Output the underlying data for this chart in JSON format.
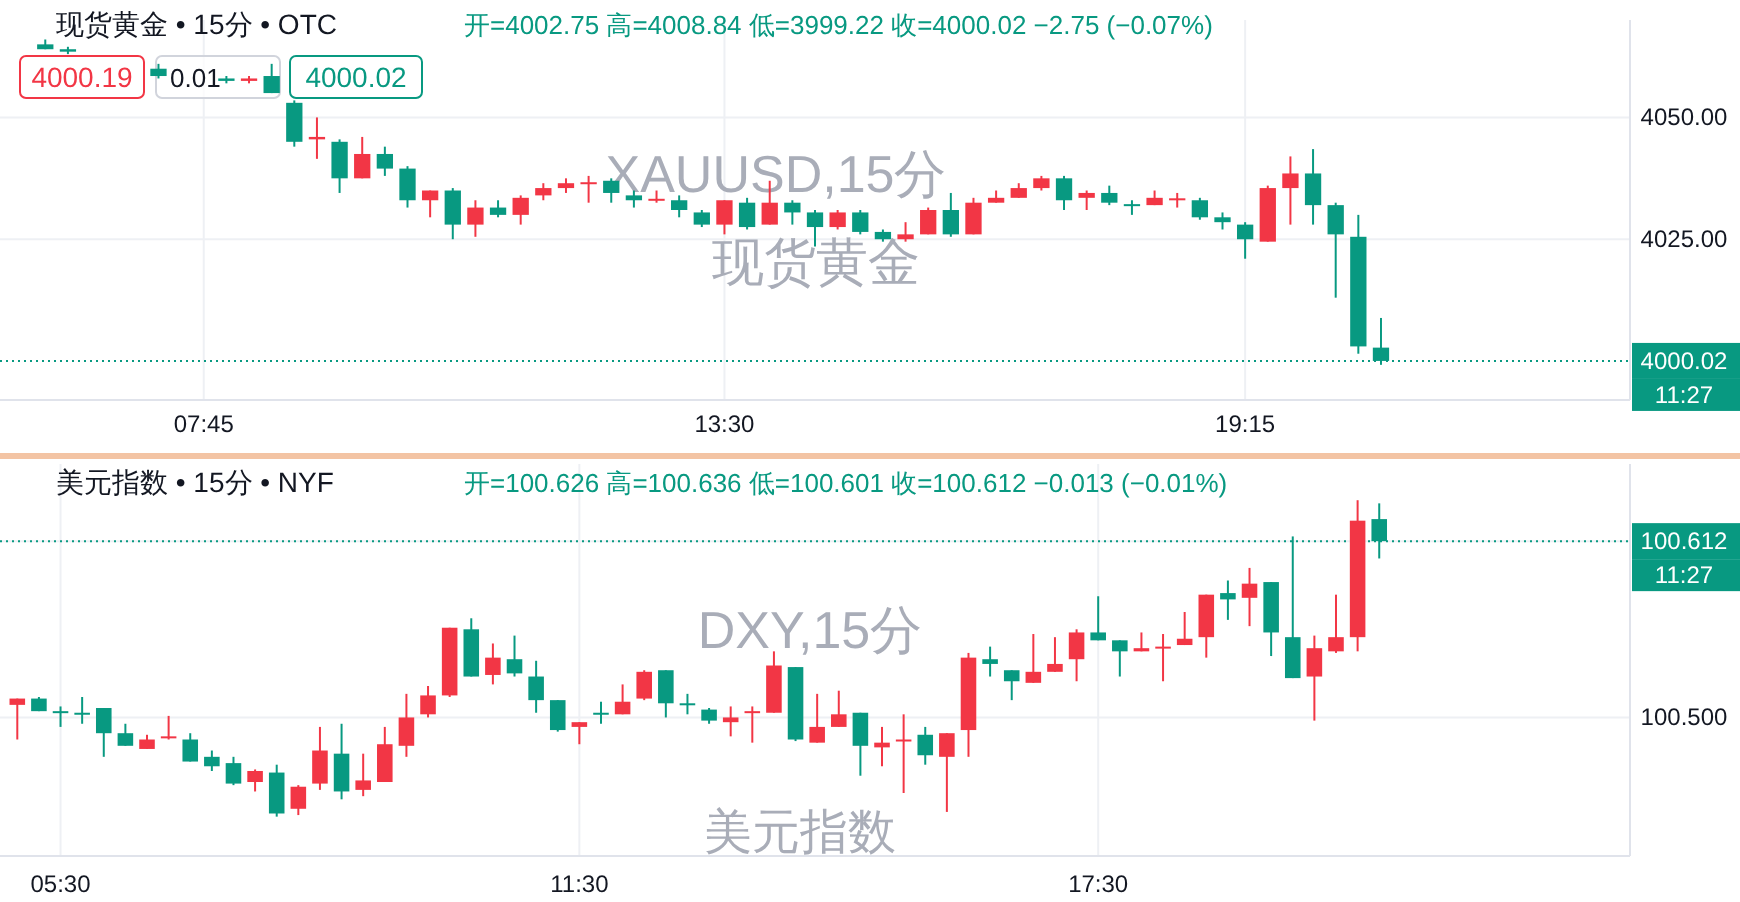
{
  "chart_data": [
    {
      "type": "candlestick",
      "title": "现货黄金 • 15分 • OTC",
      "subtitle": "开=4002.75 高=4008.84 低=3999.22 收=4000.02 −2.75 (−0.07%)",
      "x": [
        6,
        6.25,
        7.25,
        8,
        8.25,
        8.5,
        8.75,
        9,
        9.25,
        9.5,
        9.75,
        10,
        10.25,
        10.5,
        10.75,
        11,
        11.25,
        11.5,
        11.75,
        12,
        12.25,
        12.5,
        12.75,
        13,
        13.25,
        13.5,
        13.75,
        14,
        14.25,
        14.5,
        14.75,
        15,
        15.25,
        15.5,
        15.75,
        16,
        16.25,
        16.5,
        16.75,
        17,
        17.25,
        17.5,
        17.75,
        18,
        18.25,
        18.5,
        18.75,
        19,
        19.25,
        19.5,
        19.75,
        20,
        20.25,
        20.5,
        20.75
      ],
      "ohlc": [
        [
          4065,
          4066,
          4064,
          4064
        ],
        [
          4064,
          4064.5,
          4063,
          4063.5
        ],
        [
          4060,
          4061,
          4058,
          4058.5
        ],
        [
          4058,
          4058.5,
          4057,
          4057.5
        ],
        [
          4057.5,
          4058.5,
          4057,
          4058
        ],
        [
          4058.5,
          4061,
          4055,
          4055
        ],
        [
          4053,
          4053.5,
          4044,
          4045
        ],
        [
          4045.5,
          4050,
          4041.5,
          4046
        ],
        [
          4045,
          4045.5,
          4034.5,
          4037.5
        ],
        [
          4037.5,
          4046,
          4037.5,
          4042.5
        ],
        [
          4042.5,
          4044,
          4038,
          4039.5
        ],
        [
          4039.5,
          4040,
          4031.5,
          4033
        ],
        [
          4033,
          4035,
          4029.5,
          4035
        ],
        [
          4035,
          4035.5,
          4025,
          4028
        ],
        [
          4028,
          4033,
          4025.5,
          4031.5
        ],
        [
          4031.5,
          4033,
          4029.5,
          4030
        ],
        [
          4030,
          4034,
          4028,
          4033.5
        ],
        [
          4034,
          4036.5,
          4033,
          4035.5
        ],
        [
          4035.5,
          4037.5,
          4034.5,
          4036.5
        ],
        [
          4036.5,
          4038,
          4032.5,
          4036.7
        ],
        [
          4037,
          4037.5,
          4032.5,
          4034.5
        ],
        [
          4034,
          4035,
          4031.5,
          4033
        ],
        [
          4033,
          4035,
          4032.5,
          4033.3
        ],
        [
          4033,
          4034,
          4029.5,
          4031
        ],
        [
          4030.5,
          4031,
          4027.5,
          4028
        ],
        [
          4028,
          4033,
          4026,
          4033
        ],
        [
          4032.5,
          4033.5,
          4027,
          4027.5
        ],
        [
          4028,
          4037,
          4028,
          4032.5
        ],
        [
          4032.5,
          4033,
          4028,
          4030.5
        ],
        [
          4030.5,
          4031,
          4023.5,
          4027.5
        ],
        [
          4027.5,
          4031,
          4027,
          4030.5
        ],
        [
          4030.5,
          4031,
          4026,
          4026.5
        ],
        [
          4026.5,
          4027,
          4024.5,
          4025
        ],
        [
          4025,
          4028.5,
          4024.5,
          4026
        ],
        [
          4026,
          4031.5,
          4026,
          4031
        ],
        [
          4031,
          4034.5,
          4025.5,
          4026
        ],
        [
          4026,
          4033.5,
          4026,
          4032.5
        ],
        [
          4032.5,
          4035,
          4032.5,
          4033.5
        ],
        [
          4033.5,
          4036.5,
          4033.5,
          4035.5
        ],
        [
          4035.5,
          4038,
          4035,
          4037.5
        ],
        [
          4037.5,
          4038,
          4031,
          4033
        ],
        [
          4033.5,
          4035,
          4031,
          4034.5
        ],
        [
          4034.5,
          4036,
          4032,
          4032.5
        ],
        [
          4032.2,
          4033,
          4030,
          4032
        ],
        [
          4032,
          4035,
          4032,
          4033.5
        ],
        [
          4033.2,
          4034.5,
          4031.5,
          4033.4
        ],
        [
          4033,
          4033.5,
          4029,
          4029.5
        ],
        [
          4029.5,
          4030.5,
          4027,
          4028.5
        ],
        [
          4028,
          4028.5,
          4021,
          4025
        ],
        [
          4024.5,
          4036,
          4024.5,
          4035.5
        ],
        [
          4035.5,
          4042,
          4028,
          4038.5
        ],
        [
          4038.5,
          4043.5,
          4028,
          4032
        ],
        [
          4032,
          4032.5,
          4013,
          4026
        ],
        [
          4025.5,
          4030,
          4001.5,
          4003
        ],
        [
          4002.75,
          4008.84,
          3999.22,
          4000.02
        ]
      ],
      "colors": [
        "#089981",
        "#089981",
        "#089981",
        "#089981",
        "#f23645",
        "#089981",
        "#089981",
        "#f23645",
        "#089981",
        "#f23645",
        "#089981",
        "#089981",
        "#f23645",
        "#089981",
        "#f23645",
        "#089981",
        "#f23645",
        "#f23645",
        "#f23645",
        "#f23645",
        "#089981",
        "#089981",
        "#f23645",
        "#089981",
        "#089981",
        "#f23645",
        "#089981",
        "#f23645",
        "#089981",
        "#089981",
        "#f23645",
        "#089981",
        "#089981",
        "#f23645",
        "#f23645",
        "#089981",
        "#f23645",
        "#f23645",
        "#f23645",
        "#f23645",
        "#089981",
        "#f23645",
        "#089981",
        "#089981",
        "#f23645",
        "#f23645",
        "#089981",
        "#089981",
        "#089981",
        "#f23645",
        "#f23645",
        "#089981",
        "#089981",
        "#089981",
        "#089981"
      ],
      "xlim": [
        5.5,
        23.5
      ],
      "xticks": [
        {
          "value": 7.75,
          "label": "07:45"
        },
        {
          "value": 13.5,
          "label": "13:30"
        },
        {
          "value": 19.25,
          "label": "19:15"
        }
      ],
      "ylim": [
        3992,
        4070
      ],
      "yticks": [
        {
          "value": 4025,
          "label": "4025.00"
        },
        {
          "value": 4050,
          "label": "4050.00"
        }
      ],
      "grid": true,
      "ref_lines": [
        {
          "axis": "y",
          "value": 4000.02,
          "label": "4000.02",
          "color": "#089981",
          "line_style": "dotted"
        }
      ],
      "annotations": [
        "4000.19",
        "0.01",
        "4000.02",
        "11:27",
        "XAUUSD,15分",
        "现货黄金"
      ]
    },
    {
      "type": "candlestick",
      "title": "美元指数 • 15分 • NYF",
      "subtitle": "开=100.626 高=100.636 低=100.601 收=100.612 −0.013 (−0.01%)",
      "x": [
        5,
        5.25,
        5.5,
        5.75,
        6,
        6.25,
        6.5,
        6.75,
        7,
        7.25,
        7.5,
        7.75,
        8,
        8.25,
        8.5,
        8.75,
        9,
        9.25,
        9.5,
        9.75,
        10,
        10.25,
        10.5,
        10.75,
        11,
        11.25,
        11.5,
        11.75,
        12,
        12.25,
        12.5,
        12.75,
        13,
        13.25,
        13.5,
        13.75,
        14,
        14.25,
        14.5,
        14.75,
        15,
        15.25,
        15.5,
        15.75,
        16,
        16.25,
        16.5,
        16.75,
        17,
        17.25,
        17.5,
        17.75,
        18,
        18.25,
        18.5,
        18.75,
        19,
        19.25,
        19.5,
        19.75,
        20,
        20.25,
        20.5,
        20.75
      ],
      "ohlc": [
        [
          100.508,
          100.512,
          100.486,
          100.512
        ],
        [
          100.512,
          100.513,
          100.504,
          100.504
        ],
        [
          100.504,
          100.507,
          100.494,
          100.503
        ],
        [
          100.503,
          100.513,
          100.496,
          100.502
        ],
        [
          100.506,
          100.506,
          100.475,
          100.49
        ],
        [
          100.49,
          100.496,
          100.482,
          100.482
        ],
        [
          100.48,
          100.489,
          100.48,
          100.486
        ],
        [
          100.487,
          100.501,
          100.486,
          100.488
        ],
        [
          100.486,
          100.49,
          100.472,
          100.472
        ],
        [
          100.475,
          100.479,
          100.466,
          100.469
        ],
        [
          100.471,
          100.475,
          100.457,
          100.458
        ],
        [
          100.459,
          100.467,
          100.453,
          100.466
        ],
        [
          100.465,
          100.47,
          100.437,
          100.439
        ],
        [
          100.442,
          100.457,
          100.438,
          100.456
        ],
        [
          100.458,
          100.494,
          100.454,
          100.479
        ],
        [
          100.477,
          100.496,
          100.448,
          100.453
        ],
        [
          100.454,
          100.477,
          100.45,
          100.46
        ],
        [
          100.459,
          100.494,
          100.459,
          100.483
        ],
        [
          100.482,
          100.515,
          100.475,
          100.5
        ],
        [
          100.502,
          100.52,
          100.5,
          100.514
        ],
        [
          100.514,
          100.557,
          100.513,
          100.557
        ],
        [
          100.556,
          100.563,
          100.526,
          100.526
        ],
        [
          100.527,
          100.547,
          100.521,
          100.538
        ],
        [
          100.537,
          100.552,
          100.526,
          100.528
        ],
        [
          100.526,
          100.536,
          100.503,
          100.511
        ],
        [
          100.511,
          100.511,
          100.491,
          100.492
        ],
        [
          100.494,
          100.497,
          100.483,
          100.497
        ],
        [
          100.503,
          100.51,
          100.496,
          100.502
        ],
        [
          100.502,
          100.521,
          100.502,
          100.51
        ],
        [
          100.512,
          100.53,
          100.511,
          100.529
        ],
        [
          100.53,
          100.53,
          100.5,
          100.509
        ],
        [
          100.509,
          100.515,
          100.502,
          100.508
        ],
        [
          100.505,
          100.506,
          100.496,
          100.498
        ],
        [
          100.497,
          100.507,
          100.488,
          100.5
        ],
        [
          100.503,
          100.507,
          100.484,
          100.504
        ],
        [
          100.503,
          100.542,
          100.503,
          100.533
        ],
        [
          100.532,
          100.532,
          100.485,
          100.486
        ],
        [
          100.484,
          100.515,
          100.484,
          100.494
        ],
        [
          100.494,
          100.517,
          100.494,
          100.502
        ],
        [
          100.503,
          100.503,
          100.463,
          100.482
        ],
        [
          100.481,
          100.494,
          100.469,
          100.484
        ],
        [
          100.485,
          100.502,
          100.452,
          100.486
        ],
        [
          100.489,
          100.494,
          100.47,
          100.476
        ],
        [
          100.475,
          100.49,
          100.44,
          100.49
        ],
        [
          100.492,
          100.541,
          100.475,
          100.538
        ],
        [
          100.537,
          100.545,
          100.526,
          100.534
        ],
        [
          100.53,
          100.53,
          100.511,
          100.523
        ],
        [
          100.522,
          100.553,
          100.522,
          100.529
        ],
        [
          100.529,
          100.551,
          100.529,
          100.534
        ],
        [
          100.537,
          100.556,
          100.523,
          100.554
        ],
        [
          100.554,
          100.577,
          100.549,
          100.549
        ],
        [
          100.549,
          100.549,
          100.526,
          100.542
        ],
        [
          100.542,
          100.554,
          100.542,
          100.544
        ],
        [
          100.544,
          100.553,
          100.523,
          100.545
        ],
        [
          100.546,
          100.567,
          100.546,
          100.55
        ],
        [
          100.551,
          100.578,
          100.538,
          100.578
        ],
        [
          100.579,
          100.587,
          100.562,
          100.575
        ],
        [
          100.576,
          100.595,
          100.558,
          100.585
        ],
        [
          100.586,
          100.586,
          100.539,
          100.554
        ],
        [
          100.551,
          100.615,
          100.525,
          100.525
        ],
        [
          100.526,
          100.552,
          100.498,
          100.544
        ],
        [
          100.542,
          100.578,
          100.541,
          100.551
        ],
        [
          100.551,
          100.638,
          100.542,
          100.625
        ],
        [
          100.626,
          100.636,
          100.601,
          100.612
        ]
      ],
      "colors": [
        "#f23645",
        "#089981",
        "#089981",
        "#089981",
        "#089981",
        "#089981",
        "#f23645",
        "#f23645",
        "#089981",
        "#089981",
        "#089981",
        "#f23645",
        "#089981",
        "#f23645",
        "#f23645",
        "#089981",
        "#f23645",
        "#f23645",
        "#f23645",
        "#f23645",
        "#f23645",
        "#089981",
        "#f23645",
        "#089981",
        "#089981",
        "#089981",
        "#f23645",
        "#089981",
        "#f23645",
        "#f23645",
        "#089981",
        "#089981",
        "#089981",
        "#f23645",
        "#f23645",
        "#f23645",
        "#089981",
        "#f23645",
        "#f23645",
        "#089981",
        "#f23645",
        "#f23645",
        "#089981",
        "#f23645",
        "#f23645",
        "#089981",
        "#089981",
        "#f23645",
        "#f23645",
        "#f23645",
        "#089981",
        "#089981",
        "#f23645",
        "#f23645",
        "#f23645",
        "#f23645",
        "#089981",
        "#f23645",
        "#089981",
        "#089981",
        "#f23645",
        "#f23645",
        "#f23645",
        "#089981"
      ],
      "xlim": [
        4.8,
        23.65
      ],
      "xticks": [
        {
          "value": 5.5,
          "label": "05:30"
        },
        {
          "value": 11.5,
          "label": "11:30"
        },
        {
          "value": 17.5,
          "label": "17:30"
        }
      ],
      "ylim": [
        100.412,
        100.661
      ],
      "yticks": [
        {
          "value": 100.5,
          "label": "100.500"
        },
        {
          "value": 100.612,
          "label": "100.612"
        }
      ],
      "grid": true,
      "ref_lines": [
        {
          "axis": "y",
          "value": 100.612,
          "color": "#089981",
          "line_style": "dotted"
        }
      ],
      "annotations": [
        "11:27",
        "DXY,15分",
        "美元指数"
      ]
    }
  ]
}
